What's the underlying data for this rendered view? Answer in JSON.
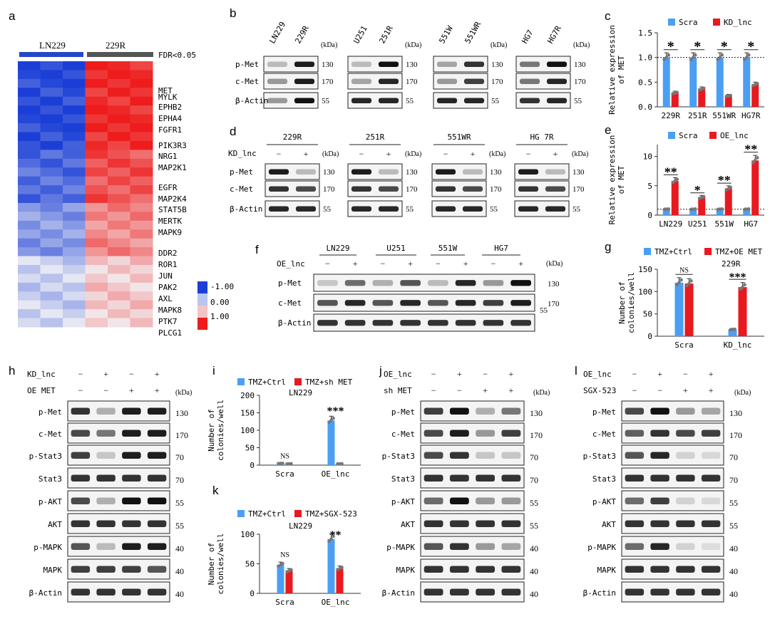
{
  "panel_letters": {
    "a": "a",
    "b": "b",
    "c": "c",
    "d": "d",
    "e": "e",
    "f": "f",
    "g": "g",
    "h": "h",
    "i": "i",
    "j": "j",
    "k": "k",
    "l": "l"
  },
  "heatmap": {
    "groups": [
      "LN229",
      "229R"
    ],
    "fdr_label": "FDR<0.05",
    "genes": [
      "MET",
      "MYLK",
      "EPHB2",
      "EPHA4",
      "FGFR1",
      "PIK3R3",
      "NRG1",
      "MAP2K1",
      "EGFR",
      "MAP2K4",
      "STAT5B",
      "MERTK",
      "MAPK9",
      "DDR2",
      "ROR1",
      "JUN",
      "PAK2",
      "AXL",
      "MAPK8",
      "PTK7",
      "PLCG1"
    ],
    "legend": [
      "-1.00",
      "0.00",
      "1.00"
    ],
    "colors": {
      "low": "#1b3fd6",
      "mid": "#f2f2f4",
      "high": "#ee1c1c"
    }
  },
  "blot_common": {
    "kda": "(kDa)",
    "minus": "−",
    "plus": "+"
  },
  "panel_b": {
    "lanes": [
      "LN229",
      "229R",
      "U251",
      "251R",
      "551W",
      "551WR",
      "HG7",
      "HG7R"
    ],
    "rows": [
      "p-Met",
      "c-Met",
      "β-Actin"
    ],
    "markers": [
      "130",
      "170",
      "55"
    ]
  },
  "panel_d": {
    "groups": [
      "229R",
      "251R",
      "551WR",
      "HG 7R"
    ],
    "treat_label": "KD_lnc",
    "rows": [
      "p-Met",
      "c-Met",
      "β-Actin"
    ],
    "markers": [
      "130",
      "170",
      "55"
    ]
  },
  "panel_f": {
    "groups": [
      "LN229",
      "U251",
      "551W",
      "HG7"
    ],
    "treat_label": "OE_lnc",
    "rows": [
      "p-Met",
      "c-Met",
      "β-Actin"
    ],
    "markers": [
      "130",
      "170",
      "55"
    ]
  },
  "panel_h": {
    "treat_labels": [
      "KD_lnc",
      "OE MET"
    ],
    "rows": [
      "p-Met",
      "c-Met",
      "p-Stat3",
      "Stat3",
      "p-AKT",
      "AKT",
      "p-MAPK",
      "MAPK",
      "β-Actin"
    ],
    "markers": [
      "130",
      "170",
      "70",
      "70",
      "55",
      "55",
      "40",
      "40",
      "40"
    ]
  },
  "panel_j": {
    "treat_labels": [
      "OE_lnc",
      "sh MET"
    ],
    "rows": [
      "p-Met",
      "c-Met",
      "p-Stat3",
      "Stat3",
      "p-AKT",
      "AKT",
      "p-MAPK",
      "MAPK",
      "β-Actin"
    ],
    "markers": [
      "130",
      "170",
      "70",
      "70",
      "55",
      "55",
      "40",
      "40",
      "40"
    ]
  },
  "panel_l": {
    "treat_labels": [
      "OE_lnc",
      "SGX-523"
    ],
    "rows": [
      "p-Met",
      "c-Met",
      "p-Stat3",
      "Stat3",
      "p-AKT",
      "AKT",
      "p-MAPK",
      "MAPK",
      "β-Actin"
    ],
    "markers": [
      "130",
      "170",
      "70",
      "70",
      "55",
      "55",
      "40",
      "40",
      "40"
    ]
  },
  "chart_data": [
    {
      "id": "c",
      "type": "bar",
      "legend": [
        "Scra",
        "KD_lnc"
      ],
      "colors": [
        "#4a9ff5",
        "#e8191f"
      ],
      "categories": [
        "229R",
        "251R",
        "551WR",
        "HG7R"
      ],
      "series": [
        {
          "name": "Scra",
          "values": [
            1.0,
            1.0,
            1.0,
            1.0
          ]
        },
        {
          "name": "KD_lnc",
          "values": [
            0.28,
            0.36,
            0.22,
            0.45
          ]
        }
      ],
      "ylabel": "Relative expression of MET",
      "ylim": [
        0,
        1.5
      ],
      "yticks": [
        "0.0",
        "0.5",
        "1.0",
        "1.5"
      ],
      "significance": [
        "*",
        "*",
        "*",
        "*"
      ],
      "reference_line": 1.0
    },
    {
      "id": "e",
      "type": "bar",
      "legend": [
        "Scra",
        "OE_lnc"
      ],
      "colors": [
        "#4a9ff5",
        "#e8191f"
      ],
      "categories": [
        "LN229",
        "U251",
        "551W",
        "HG7"
      ],
      "series": [
        {
          "name": "Scra",
          "values": [
            1.0,
            1.0,
            1.0,
            1.0
          ]
        },
        {
          "name": "OE_lnc",
          "values": [
            5.8,
            3.0,
            4.5,
            9.3
          ]
        }
      ],
      "ylabel": "Relative expression of MET",
      "ylim": [
        0,
        12
      ],
      "yticks": [
        "0",
        "5",
        "10"
      ],
      "significance": [
        "**",
        "*",
        "**",
        "**"
      ],
      "reference_line": 1.0
    },
    {
      "id": "g",
      "type": "bar",
      "legend": [
        "TMZ+Ctrl",
        "TMZ+OE MET"
      ],
      "subtitle": "229R",
      "colors": [
        "#4a9ff5",
        "#e8191f"
      ],
      "categories": [
        "Scra",
        "KD_lnc"
      ],
      "series": [
        {
          "name": "TMZ+Ctrl",
          "values": [
            120,
            15
          ]
        },
        {
          "name": "TMZ+OE MET",
          "values": [
            118,
            110
          ]
        }
      ],
      "ylabel": "Number of colonies/well",
      "ylim": [
        0,
        150
      ],
      "yticks": [
        "0",
        "50",
        "100",
        "150"
      ],
      "significance": [
        "NS",
        "***"
      ]
    },
    {
      "id": "i",
      "type": "bar",
      "legend": [
        "TMZ+Ctrl",
        "TMZ+sh MET"
      ],
      "subtitle": "LN229",
      "colors": [
        "#4a9ff5",
        "#e8191f"
      ],
      "categories": [
        "Scra",
        "OE_lnc"
      ],
      "series": [
        {
          "name": "TMZ+Ctrl",
          "values": [
            5,
            128
          ]
        },
        {
          "name": "TMZ+sh MET",
          "values": [
            4,
            4
          ]
        }
      ],
      "ylabel": "Number of colonies/well",
      "ylim": [
        0,
        200
      ],
      "yticks": [
        "0",
        "50",
        "100",
        "150",
        "200"
      ],
      "significance": [
        "NS",
        "***"
      ]
    },
    {
      "id": "k",
      "type": "bar",
      "legend": [
        "TMZ+Ctrl",
        "TMZ+SGX-523"
      ],
      "subtitle": "LN229",
      "colors": [
        "#4a9ff5",
        "#e8191f"
      ],
      "categories": [
        "Scra",
        "OE_lnc"
      ],
      "series": [
        {
          "name": "TMZ+Ctrl",
          "values": [
            48,
            92
          ]
        },
        {
          "name": "TMZ+SGX-523",
          "values": [
            38,
            42
          ]
        }
      ],
      "ylabel": "Number of colonies/well",
      "ylim": [
        0,
        100
      ],
      "yticks": [
        "0",
        "50",
        "100"
      ],
      "significance": [
        "NS",
        "**"
      ]
    }
  ]
}
